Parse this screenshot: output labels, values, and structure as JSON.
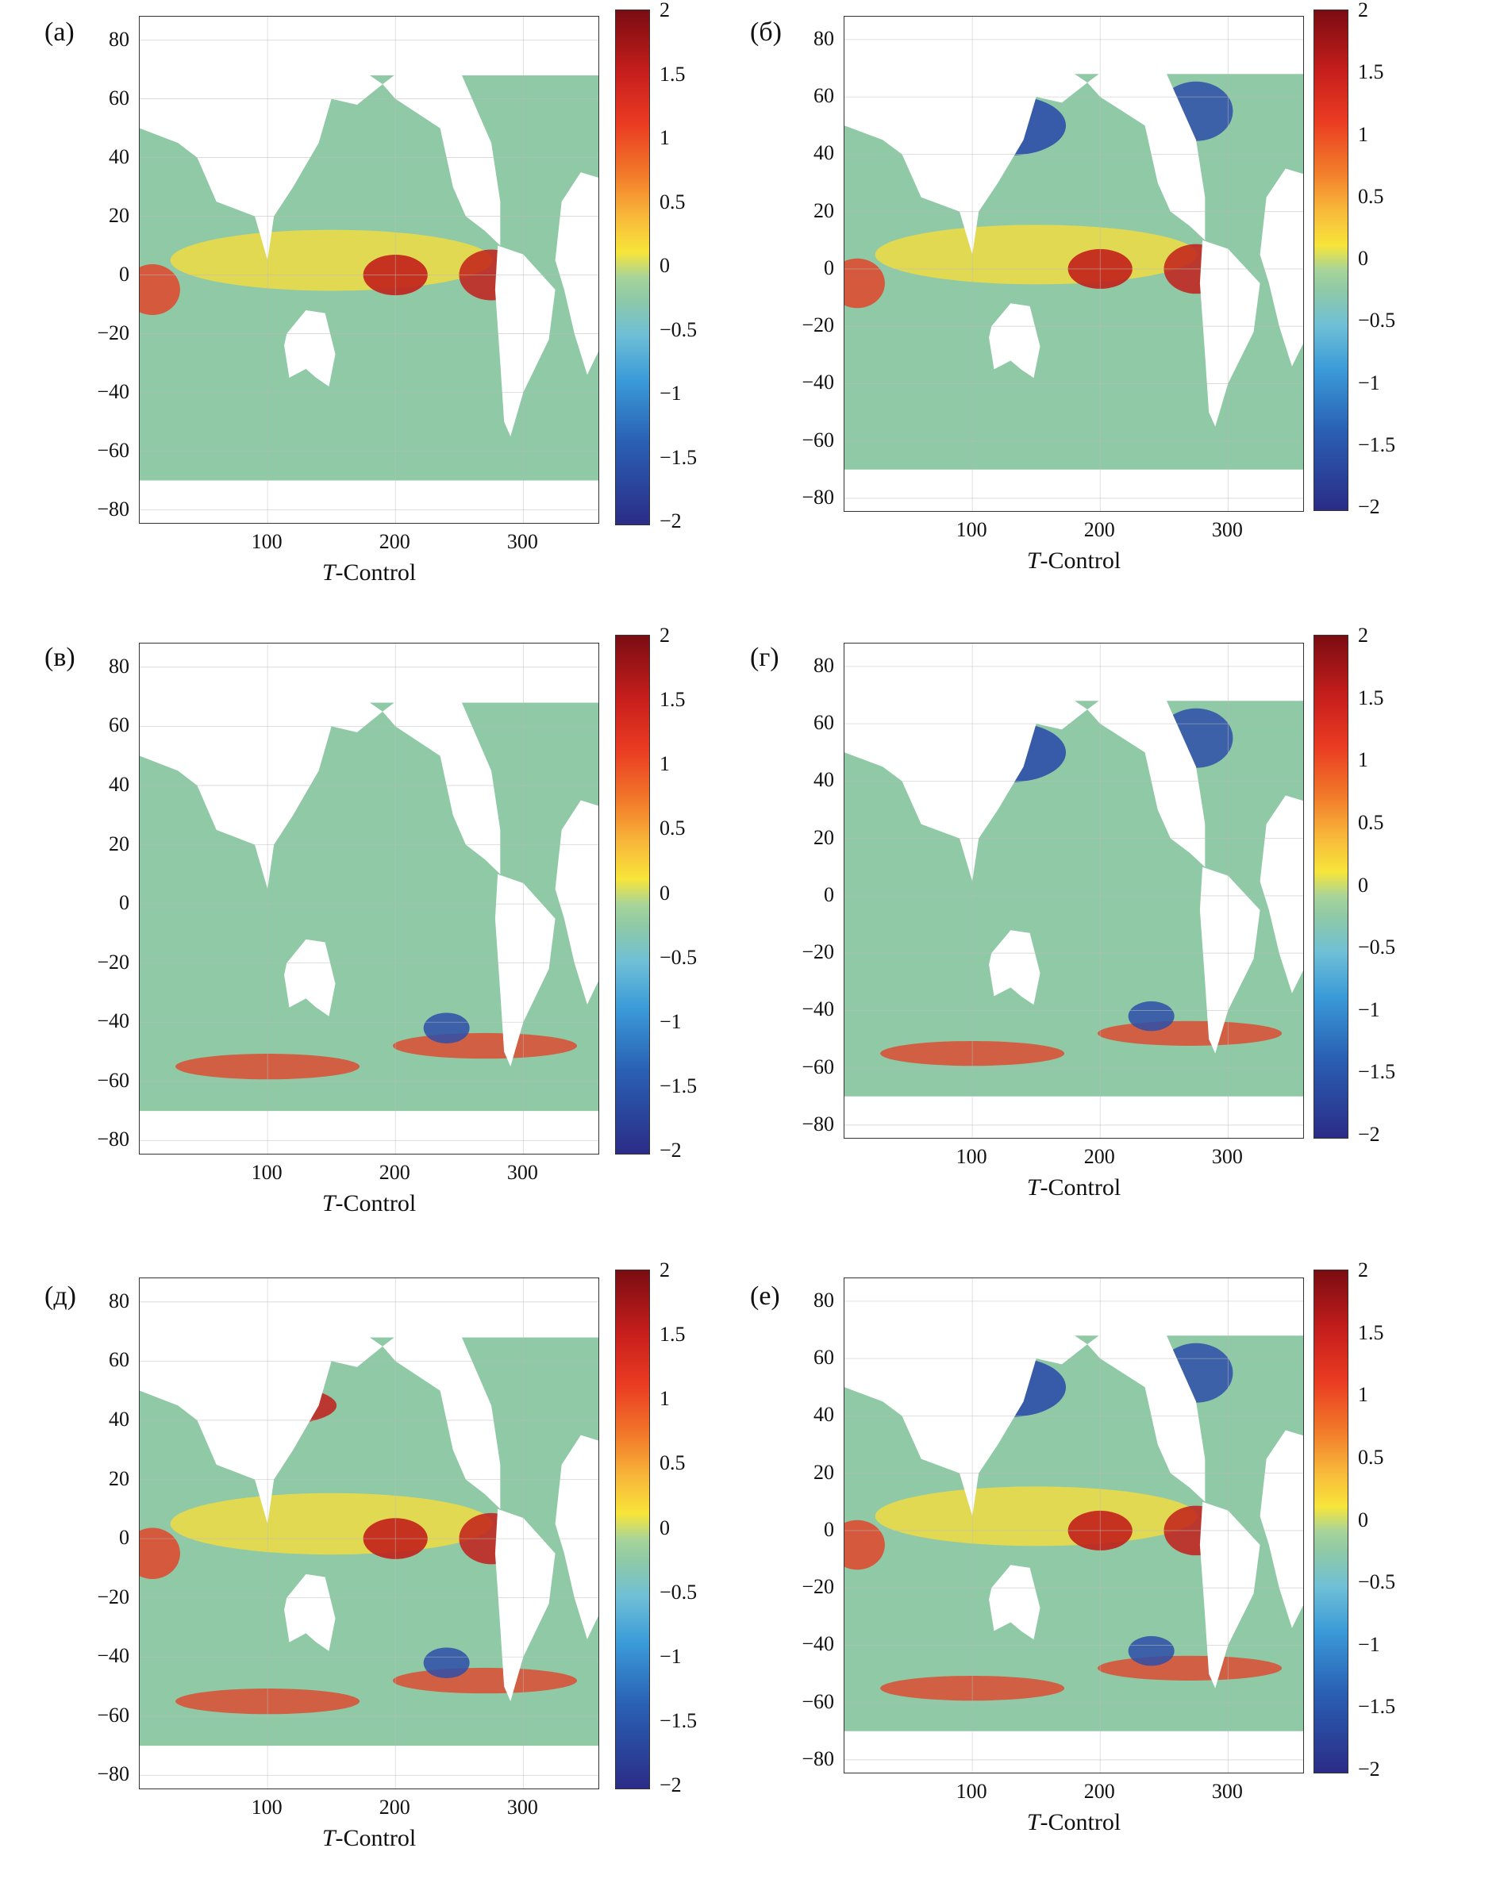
{
  "panels": [
    {
      "id": "a",
      "tag": "(а)",
      "xlabel_italic": "T",
      "xlabel_rest": "-Control"
    },
    {
      "id": "b",
      "tag": "(б)",
      "xlabel_italic": "T",
      "xlabel_rest": "-Control"
    },
    {
      "id": "c",
      "tag": "(в)",
      "xlabel_italic": "T",
      "xlabel_rest": "-Control"
    },
    {
      "id": "d",
      "tag": "(г)",
      "xlabel_italic": "T",
      "xlabel_rest": "-Control"
    },
    {
      "id": "e",
      "tag": "(д)",
      "xlabel_italic": "T",
      "xlabel_rest": "-Control"
    },
    {
      "id": "f",
      "tag": "(е)",
      "xlabel_italic": "T",
      "xlabel_rest": "-Control"
    }
  ],
  "y_ticks": [
    "80",
    "60",
    "40",
    "20",
    "0",
    "-20",
    "-40",
    "-60",
    "-80"
  ],
  "x_ticks": [
    "100",
    "200",
    "300"
  ],
  "colorbar_ticks": [
    "2",
    "1.5",
    "1",
    "0.5",
    "0",
    "−0.5",
    "−1",
    "−1.5",
    "−2"
  ],
  "colorbar_range": [
    -2,
    2
  ],
  "colors": {
    "land": "#ffffff",
    "neutral": "#8fc9a6",
    "warm": "#e0452a",
    "hot": "#c21f1a",
    "yellow": "#f1dc44",
    "cold": "#2e4fa8",
    "cool": "#5fb1dc"
  }
}
